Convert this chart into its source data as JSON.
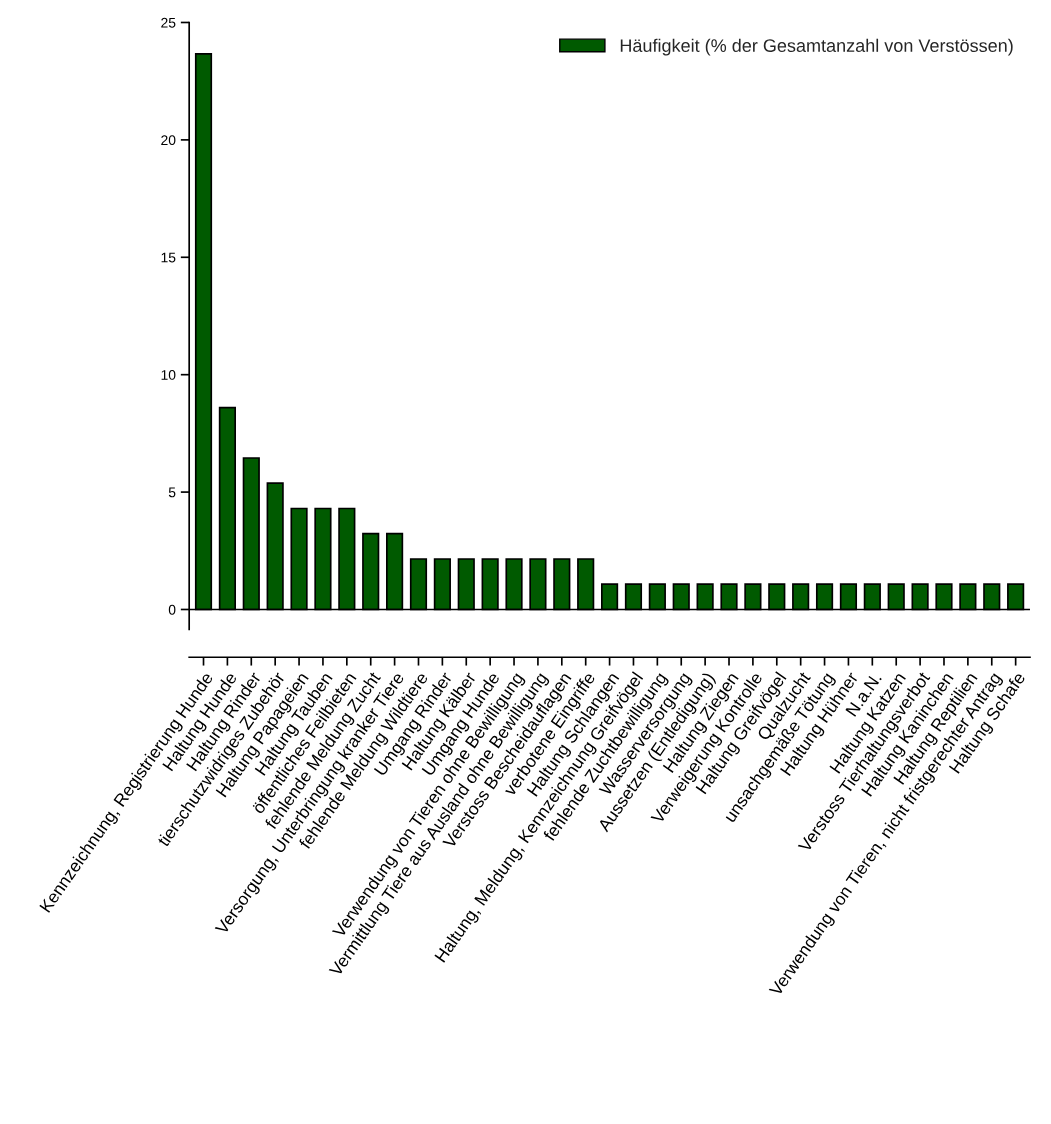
{
  "chart_data": {
    "type": "bar",
    "categories": [
      "Kennzeichnung, Registrierung Hunde",
      "Haltung Hunde",
      "Haltung Rinder",
      "tierschutzwidriges Zubehör",
      "Haltung Papageien",
      "Haltung Tauben",
      "öffentliches Feilbieten",
      "fehlende Meldung Zucht",
      "Versorgung, Unterbringung kranker Tiere",
      "fehlende Meldung Wildtiere",
      "Umgang Rinder",
      "Haltung Kälber",
      "Umgang Hunde",
      "Verwendung von Tieren ohne Bewilligung",
      "Vermittlung Tiere aus Ausland ohne Bewilligung",
      "Verstoss Bescheidauflagen",
      "verbotene Eingriffe",
      "Haltung Schlangen",
      "Haltung, Meldung, Kennzeichnung Greifvögel",
      "fehlende Zuchtbewilligung",
      "Wasserversorgung",
      "Aussetzen (Entledigung)",
      "Haltung Ziegen",
      "Verweigerung Kontrolle",
      "Haltung Greifvögel",
      "Qualzucht",
      "unsachgemäße Tötung",
      "Haltung Hühner",
      "N.a.N.",
      "Haltung Katzen",
      "Verstoss Tierhaltungsverbot",
      "Haltung Kaninchen",
      "Haltung Reptilien",
      "Verwendung von Tieren, nicht fristgerechter Antrag",
      "Haltung Schafe"
    ],
    "series": [
      {
        "name": "Häufigkeit (% der Gesamtanzahl von Verstössen)",
        "color": "#005a00",
        "values": [
          23.66,
          8.6,
          6.45,
          5.38,
          4.3,
          4.3,
          4.3,
          3.23,
          3.23,
          2.15,
          2.15,
          2.15,
          2.15,
          2.15,
          2.15,
          2.15,
          2.15,
          1.08,
          1.08,
          1.08,
          1.08,
          1.08,
          1.08,
          1.08,
          1.08,
          1.08,
          1.08,
          1.08,
          1.08,
          1.08,
          1.08,
          1.08,
          1.08,
          1.08,
          1.08
        ]
      }
    ],
    "ylim": [
      -0.85,
      25
    ],
    "yticks": [
      0,
      5,
      10,
      15,
      20,
      25
    ],
    "grid": false,
    "ref_lines": [
      {
        "axis": "y",
        "value": 0,
        "color": "#000000"
      }
    ],
    "legend": "top right"
  }
}
